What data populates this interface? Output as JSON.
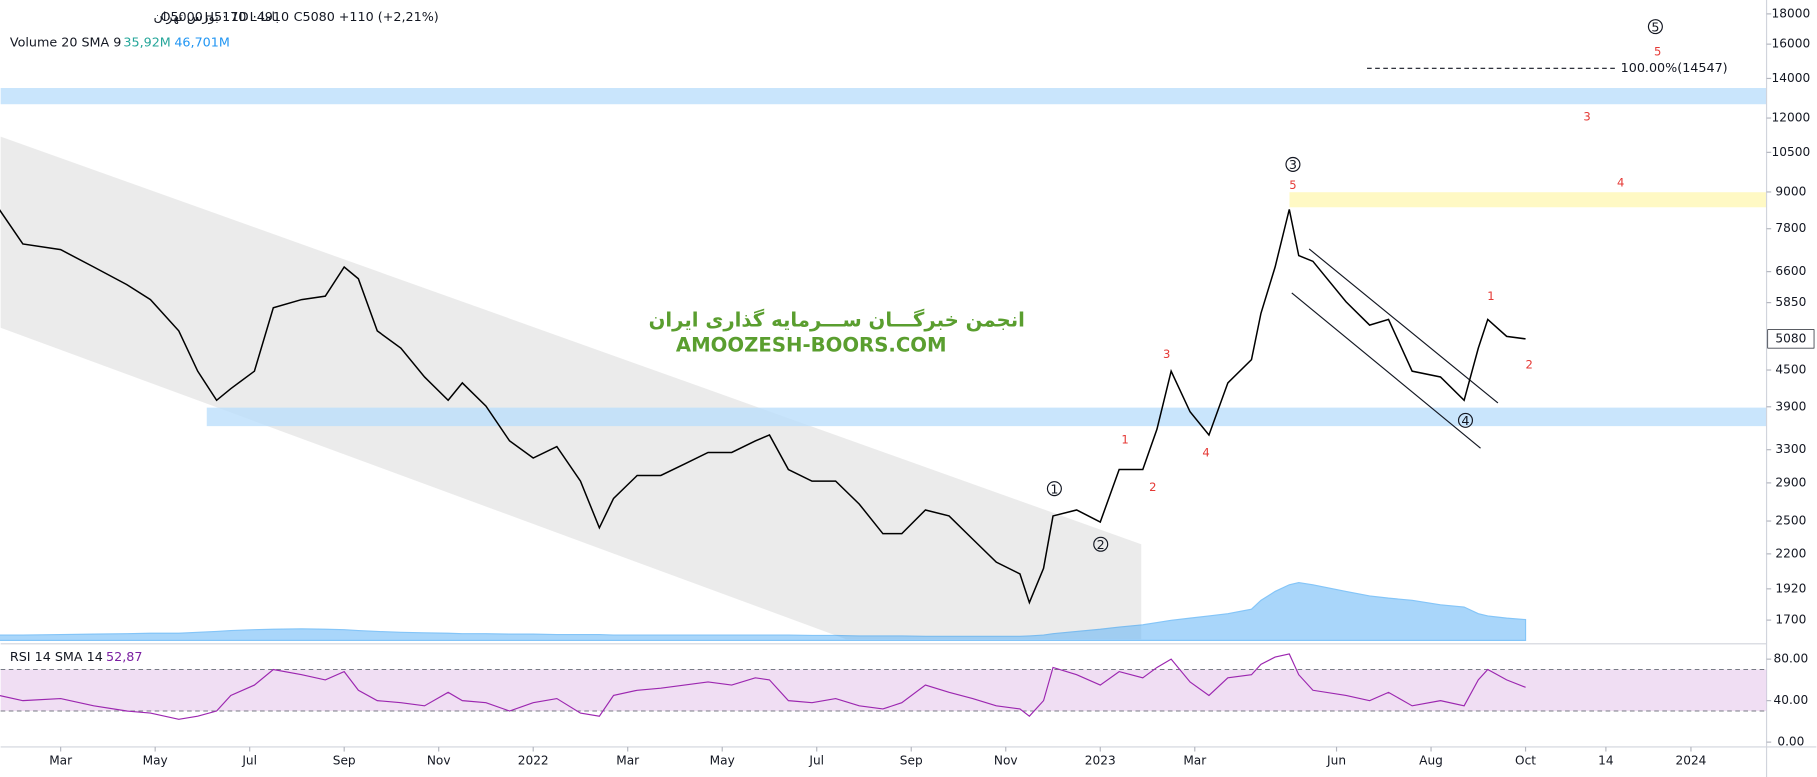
{
  "chart_data": {
    "type": "line",
    "color": "#000000",
    "log_scale": true,
    "header": {
      "symbol": "باما · 1D · بورس تهران",
      "open": "O5000",
      "high": "H5170",
      "low": "L4910",
      "close": "C5080",
      "change": "+110 (+2,21%)"
    },
    "x": [
      0.7,
      1.2,
      2.0,
      2.7,
      3.4,
      3.9,
      4.5,
      4.9,
      5.3,
      5.6,
      6.1,
      6.5,
      7.1,
      7.6,
      8.0,
      8.3,
      8.7,
      9.2,
      9.7,
      10.2,
      10.5,
      11.0,
      11.5,
      12.0,
      12.5,
      13.0,
      13.4,
      13.7,
      14.2,
      14.7,
      15.2,
      15.7,
      16.2,
      16.7,
      17.0,
      17.4,
      17.9,
      18.4,
      18.9,
      19.4,
      19.8,
      20.3,
      20.8,
      21.3,
      21.8,
      22.3,
      22.5,
      22.8,
      23.0,
      23.5,
      24.0,
      24.4,
      24.9,
      25.2,
      25.5,
      25.9,
      26.3,
      26.7,
      27.2,
      27.4,
      27.7,
      28.0,
      28.2,
      28.5,
      29.2,
      29.7,
      30.1,
      30.6,
      31.2,
      31.7,
      32.0,
      32.2,
      32.6,
      33.0
    ],
    "values": [
      8410,
      7350,
      7190,
      6720,
      6275,
      5920,
      5240,
      4480,
      4000,
      4185,
      4480,
      5735,
      5920,
      6000,
      6720,
      6420,
      5240,
      4900,
      4380,
      4000,
      4280,
      3910,
      3415,
      3195,
      3340,
      2920,
      2435,
      2730,
      2985,
      2985,
      3120,
      3265,
      3265,
      3415,
      3495,
      3055,
      2920,
      2920,
      2670,
      2380,
      2380,
      2610,
      2550,
      2330,
      2130,
      2035,
      1820,
      2080,
      2550,
      2610,
      2490,
      3055,
      3055,
      3575,
      4480,
      3825,
      3495,
      4280,
      4685,
      5610,
      6720,
      8410,
      7025,
      6870,
      5870,
      5360,
      5480,
      4480,
      4380,
      4000,
      4900,
      5480,
      5130,
      5080
    ],
    "xlim": [
      0.73,
      38.1
    ],
    "xticks": [
      {
        "value": 2,
        "label": "Mar"
      },
      {
        "value": 4,
        "label": "May"
      },
      {
        "value": 6,
        "label": "Jul"
      },
      {
        "value": 8,
        "label": "Sep"
      },
      {
        "value": 10,
        "label": "Nov"
      },
      {
        "value": 12,
        "label": "2022"
      },
      {
        "value": 14,
        "label": "Mar"
      },
      {
        "value": 16,
        "label": "May"
      },
      {
        "value": 18,
        "label": "Jul"
      },
      {
        "value": 20,
        "label": "Sep"
      },
      {
        "value": 22,
        "label": "Nov"
      },
      {
        "value": 24,
        "label": "2023"
      },
      {
        "value": 26,
        "label": "Mar"
      },
      {
        "value": 29,
        "label": "Jun"
      },
      {
        "value": 31,
        "label": "Aug"
      },
      {
        "value": 33,
        "label": "Oct"
      },
      {
        "value": 34.7,
        "label": "14"
      },
      {
        "value": 36.5,
        "label": "2024"
      }
    ],
    "ylim": [
      1550,
      19000
    ],
    "yticks": [
      1700,
      1920,
      2200,
      2500,
      2900,
      3300,
      3900,
      4500,
      5850,
      6600,
      7800,
      9000,
      10500,
      12000,
      14000,
      16000,
      18000
    ],
    "volume": {
      "name": "Volume 20 SMA 9",
      "last": "35,92M",
      "sma_label": "46,701M",
      "color": "#64b5f6",
      "ylim": [
        0,
        250
      ],
      "values": [
        12,
        12,
        13,
        14,
        15,
        16,
        16,
        18,
        20,
        22,
        24,
        25,
        26,
        25,
        24,
        22,
        20,
        18,
        17,
        16,
        15,
        15,
        14,
        14,
        13,
        13,
        13,
        12,
        12,
        12,
        12,
        12,
        12,
        12,
        12,
        12,
        11,
        11,
        10,
        10,
        10,
        9,
        9,
        9,
        9,
        9,
        10,
        12,
        15,
        20,
        25,
        30,
        35,
        40,
        45,
        50,
        55,
        60,
        70,
        90,
        110,
        125,
        130,
        125,
        110,
        100,
        95,
        90,
        80,
        75,
        60,
        55,
        50,
        46.701
      ]
    },
    "rsi": {
      "name": "RSI 14 SMA 14",
      "last_label": "52,87",
      "color": "#9c27b0",
      "ylim": [
        -4.6,
        90.3
      ],
      "band": [
        30,
        70
      ],
      "yticks": [
        {
          "value": 0,
          "label": "0.00"
        },
        {
          "value": 40,
          "label": "40.00"
        },
        {
          "value": 80,
          "label": "80.00"
        }
      ],
      "values": [
        45,
        40,
        42,
        35,
        30,
        28,
        22,
        25,
        30,
        45,
        55,
        70,
        65,
        60,
        68,
        50,
        40,
        38,
        35,
        48,
        40,
        38,
        30,
        38,
        42,
        28,
        25,
        45,
        50,
        52,
        55,
        58,
        55,
        62,
        60,
        40,
        38,
        42,
        35,
        32,
        38,
        55,
        48,
        42,
        35,
        32,
        25,
        40,
        72,
        65,
        55,
        68,
        62,
        72,
        80,
        58,
        45,
        62,
        65,
        75,
        82,
        85,
        65,
        50,
        45,
        40,
        48,
        35,
        40,
        35,
        60,
        70,
        60,
        52.87
      ]
    },
    "annotations": {
      "circled": [
        "1",
        "2",
        "3",
        "4",
        "5"
      ],
      "red": [
        "5",
        "1",
        "2",
        "3",
        "4",
        "1",
        "2",
        "3",
        "4",
        "5"
      ],
      "fib": "100.00%(14547)"
    },
    "watermark": {
      "persian": "انجمن خبرگـــان ســـرمایه گذاری ایران",
      "latin": "AMOOZESH-BOORS.COM"
    }
  }
}
